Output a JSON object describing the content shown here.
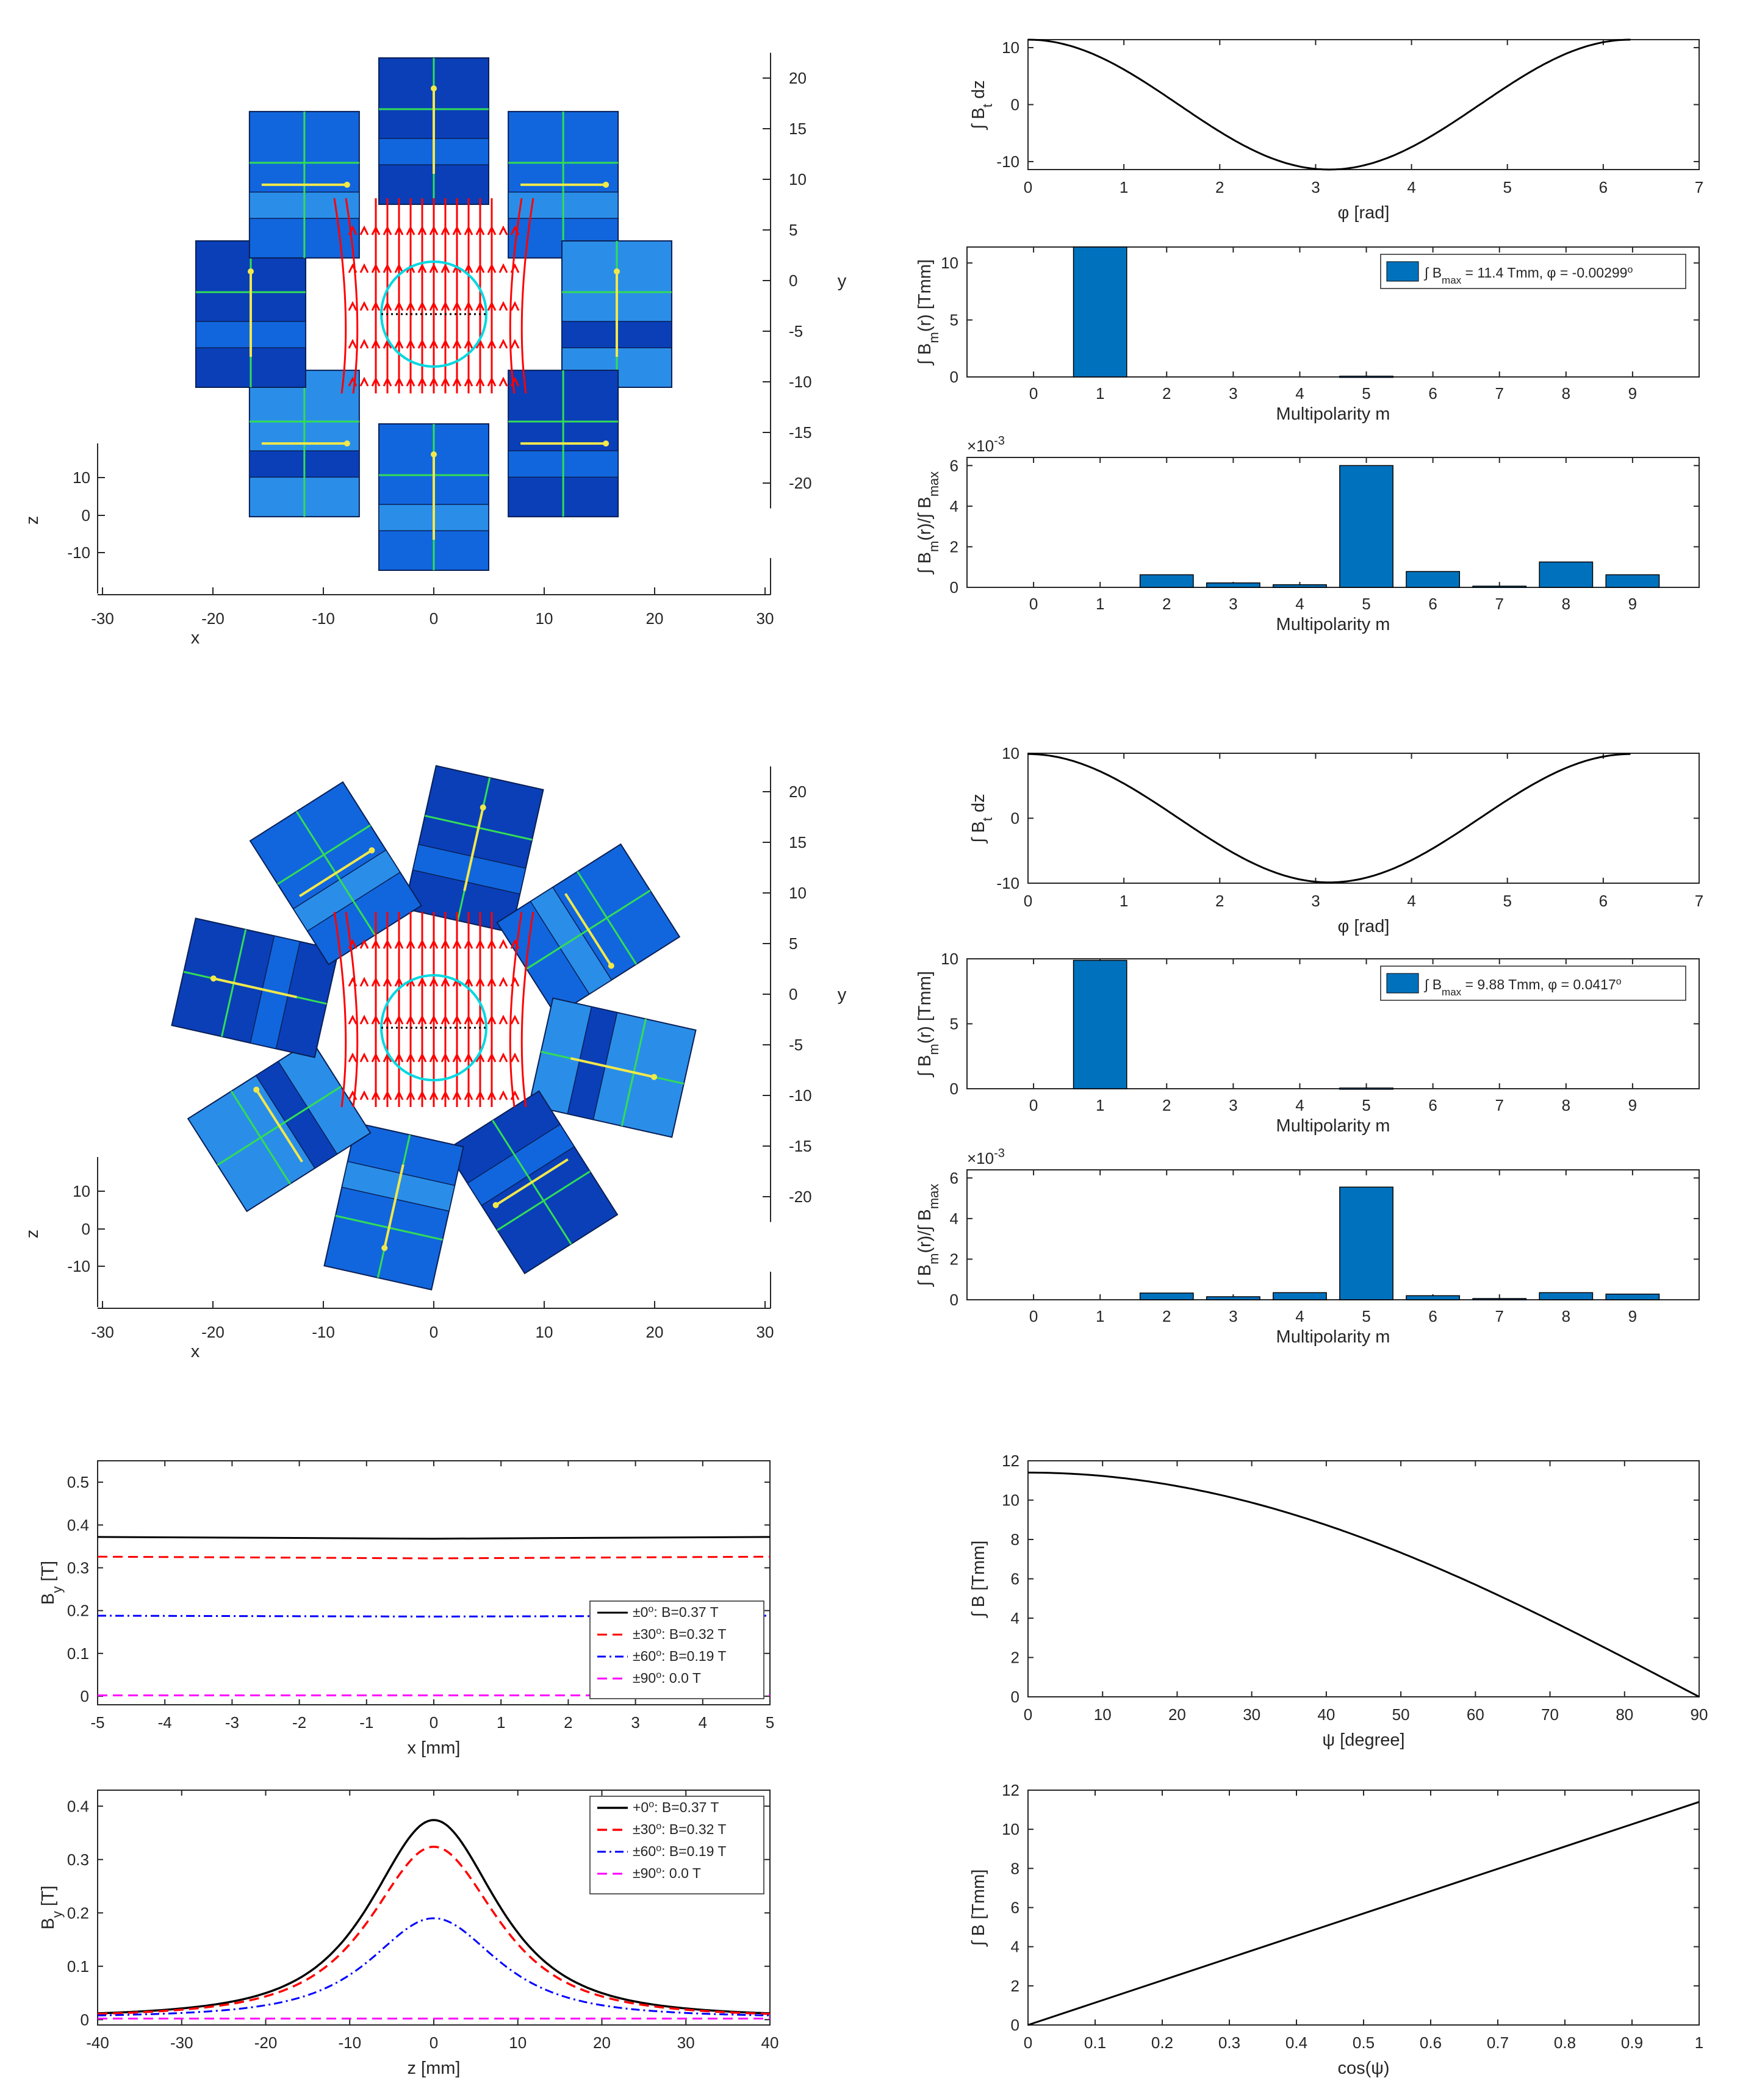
{
  "colors": {
    "axis": "#262626",
    "bar": "#0072bd",
    "bar_edge": "#000000",
    "field_lines": "#ff0000",
    "circle": "#00d8e0",
    "magnet_dark": "#0a3fb8",
    "magnet_mid": "#1166dd",
    "magnet_light": "#2a8ee8",
    "arrow": "#f2e84a",
    "edge_green": "#33dd55",
    "s0": "#000000",
    "s30": "#ff0000",
    "s60": "#0000ff",
    "s90": "#ff00ff"
  },
  "magnets": [
    {
      "name": "axis-aligned-halbach-magnets",
      "x_label": "x",
      "y_label": "y",
      "z_label": "z",
      "x_ticks": [
        "-30",
        "-20",
        "-10",
        "0",
        "10",
        "20",
        "30"
      ],
      "y_ticks": [
        "20",
        "15",
        "10",
        "5",
        "0",
        "-5",
        "-10",
        "-15",
        "-20"
      ],
      "z_ticks": [
        "10",
        "0",
        "-10"
      ],
      "layout": "axis-aligned"
    },
    {
      "name": "rotated-halbach-magnets",
      "x_label": "x",
      "y_label": "y",
      "z_label": "z",
      "x_ticks": [
        "-30",
        "-20",
        "-10",
        "0",
        "10",
        "20",
        "30"
      ],
      "y_ticks": [
        "20",
        "15",
        "10",
        "5",
        "0",
        "-5",
        "-10",
        "-15",
        "-20"
      ],
      "z_ticks": [
        "10",
        "0",
        "-10"
      ],
      "layout": "rotated"
    }
  ],
  "chart_data": [
    {
      "id": "p1",
      "type": "line",
      "xlabel": "φ [rad]",
      "ylabel_main": "∫ B",
      "ylabel_sub": "t",
      "ylabel_tail": " dz",
      "xlim": [
        0,
        7
      ],
      "ylim": [
        -11.4,
        11.4
      ],
      "xticks": [
        0,
        1,
        2,
        3,
        4,
        5,
        6,
        7
      ],
      "yticks": [
        -10,
        0,
        10
      ],
      "series": [
        {
          "amplitude": 11.4,
          "x_start": 0,
          "x_end": 6.2832,
          "function": "A*cos(x)"
        }
      ]
    },
    {
      "id": "p2",
      "type": "bar",
      "xlabel": "Multipolarity m",
      "ylabel_main": "∫ B",
      "ylabel_sub": "m",
      "ylabel_tail": "(r) [Tmm]",
      "categories": [
        "0",
        "1",
        "2",
        "3",
        "4",
        "5",
        "6",
        "7",
        "8",
        "9"
      ],
      "values": [
        0,
        11.4,
        0,
        0,
        0,
        0.068,
        0,
        0,
        0,
        0
      ],
      "ylim": [
        0,
        11.4
      ],
      "yticks": [
        0,
        5,
        10
      ],
      "legend": {
        "prefix": "∫ B",
        "sub": "max",
        "text": " = 11.4 Tmm,  φ = -0.00299",
        "sup": "o",
        "placement": "top-right"
      }
    },
    {
      "id": "p3",
      "type": "bar",
      "xlabel": "Multipolarity m",
      "ylabel_main": "∫ B",
      "ylabel_sub": "m",
      "ylabel_tail": "(r)/∫ B",
      "ylabel_sub2": "max",
      "categories": [
        "0",
        "1",
        "2",
        "3",
        "4",
        "5",
        "6",
        "7",
        "8",
        "9"
      ],
      "values": [
        0,
        0,
        0.62,
        0.22,
        0.13,
        6.0,
        0.78,
        0.06,
        1.25,
        0.62
      ],
      "ylim": [
        0,
        6.4
      ],
      "yticks": [
        0,
        2,
        4,
        6
      ],
      "exponent": "×10",
      "exponent_sup": "-3"
    },
    {
      "id": "p4",
      "type": "line",
      "xlabel": "φ [rad]",
      "ylabel_main": "∫ B",
      "ylabel_sub": "t",
      "ylabel_tail": " dz",
      "xlim": [
        0,
        7
      ],
      "ylim": [
        -10,
        10
      ],
      "xticks": [
        0,
        1,
        2,
        3,
        4,
        5,
        6,
        7
      ],
      "yticks": [
        -10,
        0,
        10
      ],
      "series": [
        {
          "amplitude": 9.88,
          "x_start": 0,
          "x_end": 6.2832,
          "function": "A*cos(x)"
        }
      ]
    },
    {
      "id": "p5",
      "type": "bar",
      "xlabel": "Multipolarity m",
      "ylabel_main": "∫ B",
      "ylabel_sub": "m",
      "ylabel_tail": "(r) [Tmm]",
      "categories": [
        "0",
        "1",
        "2",
        "3",
        "4",
        "5",
        "6",
        "7",
        "8",
        "9"
      ],
      "values": [
        0,
        9.88,
        0,
        0,
        0,
        0.055,
        0,
        0,
        0,
        0
      ],
      "ylim": [
        0,
        10
      ],
      "yticks": [
        0,
        5,
        10
      ],
      "legend": {
        "prefix": "∫ B",
        "sub": "max",
        "text": " = 9.88 Tmm,  φ = 0.0417",
        "sup": "o",
        "placement": "top-right"
      }
    },
    {
      "id": "p6",
      "type": "bar",
      "xlabel": "Multipolarity m",
      "ylabel_main": "∫ B",
      "ylabel_sub": "m",
      "ylabel_tail": "(r)/∫ B",
      "ylabel_sub2": "max",
      "categories": [
        "0",
        "1",
        "2",
        "3",
        "4",
        "5",
        "6",
        "7",
        "8",
        "9"
      ],
      "values": [
        0,
        0,
        0.33,
        0.15,
        0.35,
        5.55,
        0.2,
        0.06,
        0.35,
        0.28
      ],
      "ylim": [
        0,
        6.4
      ],
      "yticks": [
        0,
        2,
        4,
        6
      ],
      "exponent": "×10",
      "exponent_sup": "-3"
    },
    {
      "id": "p7",
      "type": "line",
      "xlabel": "x [mm]",
      "ylabel_main": "B",
      "ylabel_sub": "y",
      "ylabel_tail": " [T]",
      "xlim": [
        -5,
        5
      ],
      "ylim": [
        -0.02,
        0.55
      ],
      "xticks": [
        -5,
        -4,
        -3,
        -2,
        -1,
        0,
        1,
        2,
        3,
        4,
        5
      ],
      "yticks": [
        0,
        0.1,
        0.2,
        0.3,
        0.4,
        0.5
      ],
      "ytick_labels": [
        "0",
        "0.1",
        "0.2",
        "0.3",
        "0.4",
        "0.5"
      ],
      "series": [
        {
          "name_pre": "±0",
          "name_post": ": B=0.37 T",
          "x": [
            -5,
            -2.5,
            0,
            2.5,
            5
          ],
          "y": [
            0.372,
            0.37,
            0.368,
            0.37,
            0.372
          ],
          "dash": "",
          "width": 3,
          "color_key": "s0"
        },
        {
          "name_pre": "±30",
          "name_post": ": B=0.32 T",
          "x": [
            -5,
            -2.5,
            0,
            2.5,
            5
          ],
          "y": [
            0.326,
            0.324,
            0.322,
            0.324,
            0.326
          ],
          "dash": "16 9",
          "width": 3,
          "color_key": "s30"
        },
        {
          "name_pre": "±60",
          "name_post": ": B=0.19 T",
          "x": [
            -5,
            -2.5,
            0,
            2.5,
            5
          ],
          "y": [
            0.188,
            0.187,
            0.186,
            0.187,
            0.188
          ],
          "dash": "14 6 3 6",
          "width": 3,
          "color_key": "s60"
        },
        {
          "name_pre": "±90",
          "name_post": ": 0.0 T",
          "x": [
            -5,
            5
          ],
          "y": [
            0.002,
            0.002
          ],
          "dash": "16 9",
          "width": 3,
          "color_key": "s90"
        }
      ],
      "legend_placement": "bottom-right"
    },
    {
      "id": "p8",
      "type": "line",
      "xlabel": "ψ [degree]",
      "ylabel_main": "∫ B",
      "ylabel_sub": "",
      "ylabel_tail": " [Tmm]",
      "xlim": [
        0,
        90
      ],
      "ylim": [
        0,
        12
      ],
      "xticks": [
        0,
        10,
        20,
        30,
        40,
        50,
        60,
        70,
        80,
        90
      ],
      "yticks": [
        0,
        2,
        4,
        6,
        8,
        10,
        12
      ],
      "series": [
        {
          "amplitude": 11.4,
          "x_start": 0,
          "x_end": 90,
          "function": "A*cos(x deg)"
        }
      ]
    },
    {
      "id": "p9",
      "type": "line",
      "xlabel": "z [mm]",
      "ylabel_main": "B",
      "ylabel_sub": "y",
      "ylabel_tail": " [T]",
      "xlim": [
        -40,
        40
      ],
      "ylim": [
        -0.01,
        0.43
      ],
      "xticks": [
        -40,
        -30,
        -20,
        -10,
        0,
        10,
        20,
        30,
        40
      ],
      "yticks": [
        0,
        0.1,
        0.2,
        0.3,
        0.4
      ],
      "ytick_labels": [
        "0",
        "0.1",
        "0.2",
        "0.3",
        "0.4"
      ],
      "series": [
        {
          "name_pre": "+0",
          "name_post": ": B=0.37 T",
          "peak": 0.37,
          "sigma": 11.5,
          "base": 0.0,
          "dash": "",
          "width": 3.5,
          "color_key": "s0"
        },
        {
          "name_pre": "±30",
          "name_post": ": B=0.32 T",
          "peak": 0.32,
          "sigma": 11.5,
          "base": 0.0,
          "dash": "16 9",
          "width": 3.5,
          "color_key": "s30"
        },
        {
          "name_pre": "±60",
          "name_post": ": B=0.19 T",
          "peak": 0.186,
          "sigma": 11.5,
          "base": 0.0,
          "dash": "14 6 3 6",
          "width": 3,
          "color_key": "s60"
        },
        {
          "name_pre": "±90",
          "name_post": ": 0.0 T",
          "peak": 0.0,
          "sigma": 11.5,
          "base": 0.002,
          "dash": "16 9",
          "width": 3,
          "color_key": "s90"
        }
      ],
      "legend_placement": "top-right"
    },
    {
      "id": "p10",
      "type": "line",
      "xlabel": "cos(ψ)",
      "ylabel_main": "∫ B",
      "ylabel_sub": "",
      "ylabel_tail": " [Tmm]",
      "xlim": [
        0,
        1
      ],
      "ylim": [
        0,
        12
      ],
      "xticks": [
        0,
        0.1,
        0.2,
        0.3,
        0.4,
        0.5,
        0.6,
        0.7,
        0.8,
        0.9,
        1
      ],
      "xtick_labels": [
        "0",
        "0.1",
        "0.2",
        "0.3",
        "0.4",
        "0.5",
        "0.6",
        "0.7",
        "0.8",
        "0.9",
        "1"
      ],
      "yticks": [
        0,
        2,
        4,
        6,
        8,
        10,
        12
      ],
      "series": [
        {
          "x": [
            0,
            1
          ],
          "y": [
            0,
            11.4
          ]
        }
      ]
    }
  ]
}
